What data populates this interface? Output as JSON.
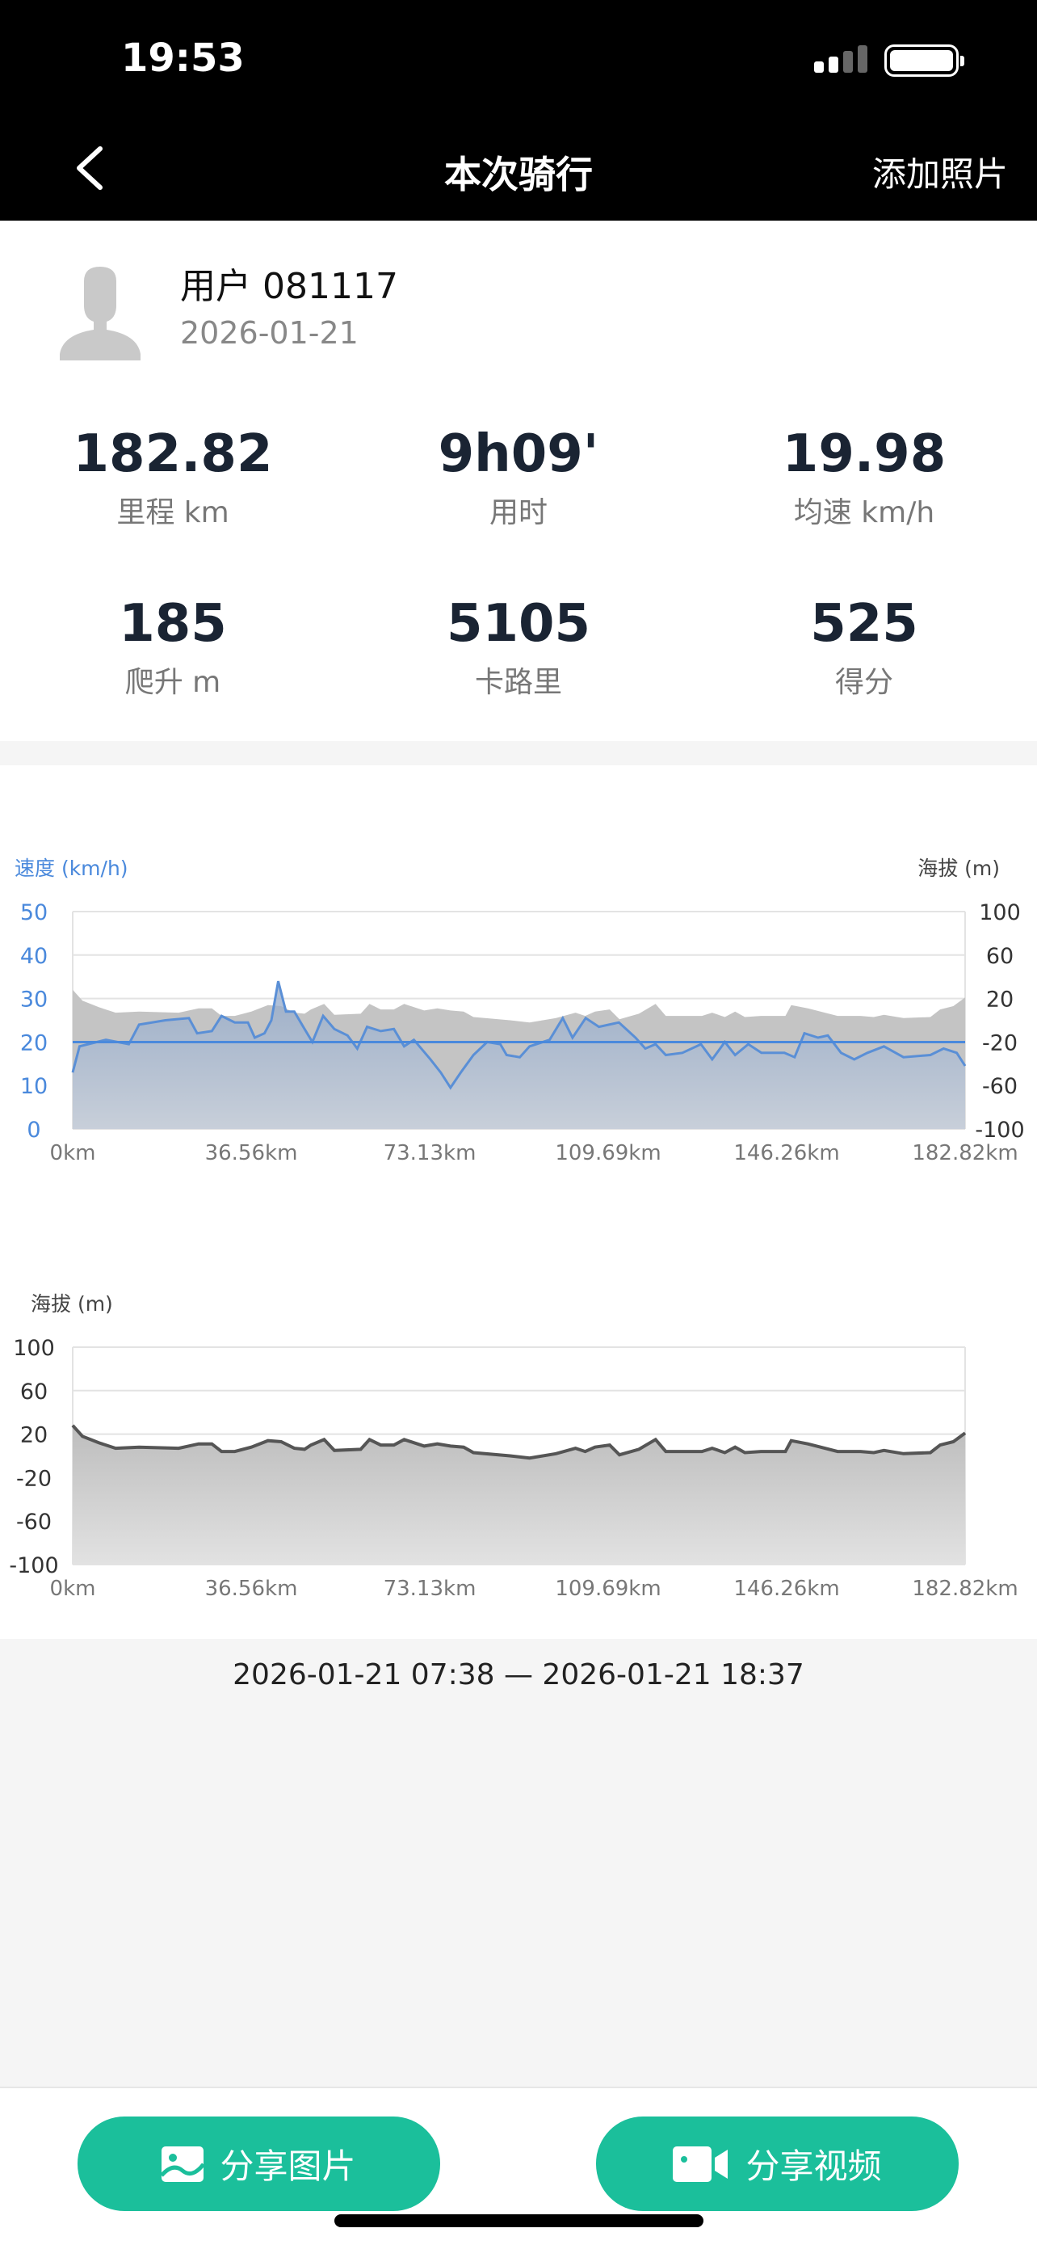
{
  "status_bar": {
    "time": "19:53",
    "signal_icon": "signal-icon",
    "battery_icon": "battery-icon"
  },
  "nav": {
    "title": "本次骑行",
    "add_photo": "添加照片",
    "back_icon": "chevron-left-icon"
  },
  "user": {
    "name": "用户 081117",
    "date": "2026-01-21"
  },
  "stats": [
    {
      "value": "182.82",
      "label": "里程 km"
    },
    {
      "value": "9h09'",
      "label": "用时"
    },
    {
      "value": "19.98",
      "label": "均速 km/h"
    },
    {
      "value": "185",
      "label": "爬升 m"
    },
    {
      "value": "5105",
      "label": "卡路里"
    },
    {
      "value": "525",
      "label": "得分"
    }
  ],
  "colors": {
    "speed": "#4a89dc",
    "altitude_fill": "#c4c4c4",
    "altitude_line": "#555555",
    "accent": "#1bbf9b"
  },
  "chart_data": [
    {
      "type": "line",
      "y_left_label": "速度 (km/h)",
      "y_right_label": "海拔 (m)",
      "y_left_ticks": [
        "50",
        "40",
        "30",
        "20",
        "10",
        "0"
      ],
      "y_right_ticks": [
        "100",
        "60",
        "20",
        "-20",
        "-60",
        "-100"
      ],
      "x_ticks": [
        "0km",
        "36.56km",
        "73.13km",
        "109.69km",
        "146.26km",
        "182.82km"
      ],
      "xlim": [
        0,
        182.82
      ],
      "ylim_left": [
        0,
        50
      ],
      "ylim_right": [
        -100,
        100
      ],
      "grid": true,
      "average_speed": 19.98,
      "speed_x": [
        0,
        1.4,
        6.8,
        11.5,
        13.6,
        19,
        23.8,
        25.5,
        28.5,
        30.5,
        33.2,
        35.9,
        37.3,
        39.3,
        40.7,
        42.1,
        43.7,
        45.4,
        47.5,
        49.1,
        51.3,
        53.6,
        56.3,
        58.3,
        60.3,
        63.1,
        65.8,
        67.9,
        69.9,
        73.3,
        75.4,
        77.4,
        79.5,
        82.1,
        84.9,
        87.6,
        88.9,
        91.6,
        93.6,
        97.7,
        100.4,
        102.4,
        105.1,
        107.8,
        111.9,
        115.3,
        117.3,
        119.4,
        121.5,
        124.9,
        128.7,
        131,
        133.6,
        135.7,
        138.4,
        141.1,
        145.8,
        147.9,
        149.9,
        152.7,
        154.7,
        157.4,
        160.1,
        162.8,
        166.2,
        170.2,
        175.7,
        178.4,
        181.1,
        182.82
      ],
      "speed": [
        13,
        19,
        20.5,
        19.5,
        24,
        25,
        25.5,
        22,
        22.5,
        26,
        24.5,
        24.5,
        21,
        22,
        25,
        34,
        27,
        27,
        23,
        20,
        26,
        23,
        21.5,
        18.5,
        23.5,
        22.5,
        23,
        19,
        20.5,
        16,
        13,
        9.5,
        13,
        17,
        20,
        19.5,
        17,
        16.5,
        19,
        20.5,
        25.5,
        21,
        25.5,
        23.5,
        24.5,
        21,
        18.5,
        19.5,
        17,
        17.5,
        19.5,
        16,
        20,
        17,
        19.5,
        17.5,
        17.5,
        16.5,
        22,
        21,
        21.5,
        17.5,
        16,
        17.5,
        19,
        16.5,
        17,
        18.5,
        17.5,
        14.5
      ]
    },
    {
      "type": "area",
      "y_label": "海拔 (m)",
      "y_ticks": [
        "100",
        "60",
        "20",
        "-20",
        "-60",
        "-100"
      ],
      "x_ticks": [
        "0km",
        "36.56km",
        "73.13km",
        "109.69km",
        "146.26km",
        "182.82km"
      ],
      "xlim": [
        0,
        182.82
      ],
      "ylim": [
        -100,
        100
      ],
      "grid": true,
      "altitude_x": [
        0,
        2,
        5.4,
        8.8,
        13.6,
        21.7,
        25.8,
        28.5,
        30.5,
        33.2,
        36.6,
        40,
        42.7,
        45.4,
        47.5,
        48.8,
        51.5,
        53.6,
        59,
        60.8,
        63.1,
        65.8,
        67.9,
        72,
        74.7,
        77.4,
        80.1,
        82.1,
        89.6,
        93.6,
        99,
        103,
        105,
        107,
        110,
        112,
        116,
        119.4,
        121.5,
        128.9,
        131,
        133.6,
        135.7,
        137.7,
        141,
        146,
        147.2,
        150.6,
        156.7,
        161.4,
        164.1,
        166.2,
        170.2,
        175.7,
        177.7,
        180.4,
        182.82
      ],
      "altitude": [
        28,
        18,
        12,
        7,
        8,
        7,
        11,
        11,
        4,
        4,
        8,
        14,
        13,
        7,
        6,
        10,
        15,
        5,
        6,
        15,
        10,
        10,
        15,
        9,
        11,
        9,
        8,
        3,
        0,
        -2,
        2,
        7,
        4,
        8,
        10,
        1,
        6,
        15,
        4,
        4,
        7,
        3,
        8,
        3,
        4,
        4,
        14,
        11,
        4,
        4,
        3,
        5,
        2,
        3,
        10,
        13,
        21
      ]
    }
  ],
  "time_range": "2026-01-21 07:38 — 2026-01-21 18:37",
  "buttons": {
    "share_image": "分享图片",
    "share_video": "分享视频"
  }
}
